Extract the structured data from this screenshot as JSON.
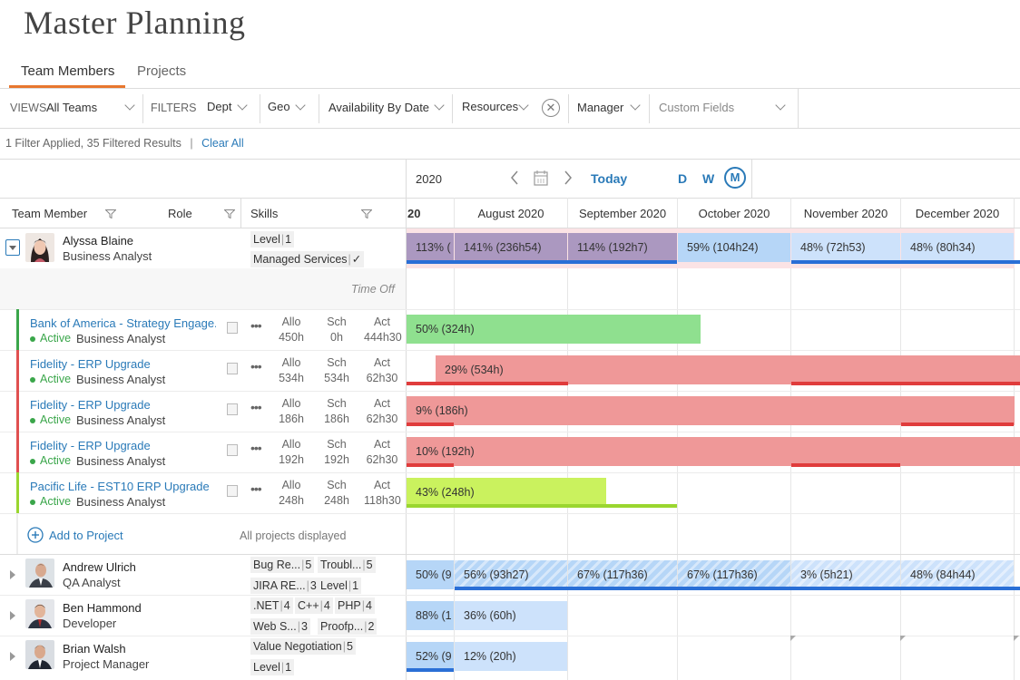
{
  "page": {
    "title": "Master Planning"
  },
  "tabs": [
    {
      "label": "Team Members"
    },
    {
      "label": "Projects"
    }
  ],
  "filters": {
    "views_label": "VIEWS",
    "views_value": "All Teams",
    "filters_label": "FILTERS",
    "dept": "Dept",
    "geo": "Geo",
    "availability": "Availability By Date",
    "resources": "Resources",
    "manager": "Manager",
    "custom_fields": "Custom Fields"
  },
  "status": {
    "summary": "1 Filter Applied, 35 Filtered Results",
    "divider": "|",
    "clear_all": "Clear All"
  },
  "timeline": {
    "year": "2020",
    "today": "Today",
    "scale_day": "D",
    "scale_week": "W",
    "scale_month": "M",
    "partial_month": "20",
    "months": [
      "August 2020",
      "September 2020",
      "October 2020",
      "November 2020",
      "December 2020"
    ]
  },
  "columns": {
    "team_member": "Team Member",
    "role": "Role",
    "skills": "Skills"
  },
  "members": [
    {
      "name": "Alyssa Blaine",
      "role": "Business Analyst",
      "skills": [
        {
          "name": "Level",
          "level": "1"
        },
        {
          "name": "Managed Services",
          "level": "✓"
        }
      ],
      "time_off": "Time Off",
      "utilization": [
        "113% (",
        "141% (236h54)",
        "114% (192h7)",
        "59% (104h24)",
        "48% (72h53)",
        "48% (80h34)"
      ]
    },
    {
      "name": "Andrew Ulrich",
      "role": "QA Analyst",
      "skills": [
        {
          "name": "Bug Re...",
          "level": "5"
        },
        {
          "name": "Troubl...",
          "level": "5"
        },
        {
          "name": "JIRA RE...",
          "level": "3"
        },
        {
          "name": "Level",
          "level": "1"
        }
      ],
      "utilization": [
        "50% (9",
        "56% (93h27)",
        "67% (117h36)",
        "67% (117h36)",
        "3% (5h21)",
        "48% (84h44)"
      ]
    },
    {
      "name": "Ben Hammond",
      "role": "Developer",
      "skills": [
        {
          "name": ".NET",
          "level": "4"
        },
        {
          "name": "C++",
          "level": "4"
        },
        {
          "name": "PHP",
          "level": "4"
        },
        {
          "name": "Web S...",
          "level": "3"
        },
        {
          "name": "Proofp...",
          "level": "2"
        }
      ],
      "utilization": [
        "88% (1",
        "36% (60h)"
      ]
    },
    {
      "name": "Brian Walsh",
      "role": "Project Manager",
      "skills": [
        {
          "name": "Value Negotiation",
          "level": "5"
        },
        {
          "name": "Level",
          "level": "1"
        }
      ],
      "utilization": [
        "52% (9",
        "12% (20h)"
      ]
    }
  ],
  "metric_labels": {
    "allocated": "Allo",
    "scheduled": "Sch",
    "actual": "Act"
  },
  "projects": [
    {
      "title": "Bank of America - Strategy Engage...",
      "status": "Active",
      "role": "Business Analyst",
      "allo": "450h",
      "sch": "0h",
      "act": "444h30",
      "bar_label": "50% (324h)",
      "color": "#3aa64a"
    },
    {
      "title": "Fidelity - ERP Upgrade",
      "status": "Active",
      "role": "Business Analyst",
      "allo": "534h",
      "sch": "534h",
      "act": "62h30",
      "bar_label": "29% (534h)",
      "color": "#e05050"
    },
    {
      "title": "Fidelity - ERP Upgrade",
      "status": "Active",
      "role": "Business Analyst",
      "allo": "186h",
      "sch": "186h",
      "act": "62h30",
      "bar_label": "9% (186h)",
      "color": "#e05050"
    },
    {
      "title": "Fidelity - ERP Upgrade",
      "status": "Active",
      "role": "Business Analyst",
      "allo": "192h",
      "sch": "192h",
      "act": "62h30",
      "bar_label": "10% (192h)",
      "color": "#e05050"
    },
    {
      "title": "Pacific Life - EST10 ERP Upgrade",
      "status": "Active",
      "role": "Business Analyst",
      "allo": "248h",
      "sch": "248h",
      "act": "118h30",
      "bar_label": "43% (248h)",
      "color": "#9ad62f"
    }
  ],
  "project_footer": {
    "add": "Add to Project",
    "all": "All projects displayed"
  }
}
